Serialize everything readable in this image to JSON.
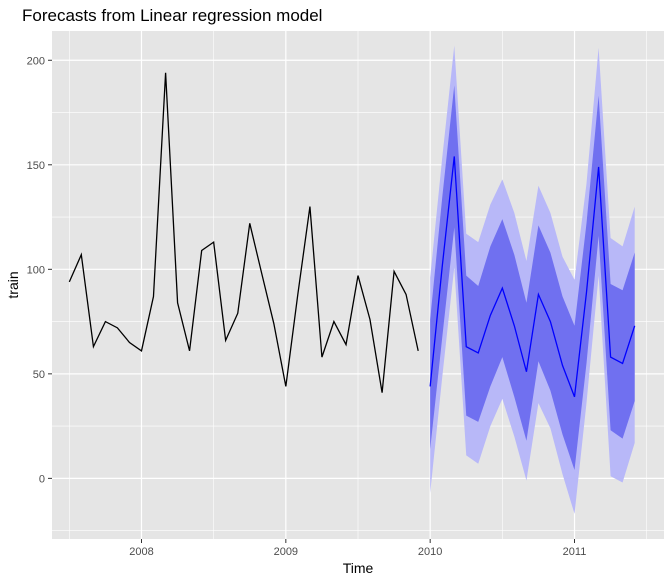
{
  "chart_data": {
    "type": "line",
    "title": "Forecasts from Linear regression model",
    "xlabel": "Time",
    "ylabel": "train",
    "xlim": [
      2007.38,
      2011.62
    ],
    "ylim": [
      -29,
      214
    ],
    "x_ticks": [
      2008,
      2009,
      2010,
      2011
    ],
    "x_tick_labels": [
      "2008",
      "2009",
      "2010",
      "2011"
    ],
    "y_ticks": [
      0,
      50,
      100,
      150,
      200
    ],
    "y_tick_labels": [
      "0",
      "50",
      "100",
      "150",
      "200"
    ],
    "grid": true,
    "colors": {
      "panel": "#e5e5e5",
      "grid": "#ffffff",
      "history": "#000000",
      "forecast": "#0000ff",
      "band80": "#7070f0",
      "band95": "#b8b8f8"
    },
    "history": {
      "x": [
        2007.5,
        2007.583,
        2007.667,
        2007.75,
        2007.833,
        2007.917,
        2008.0,
        2008.083,
        2008.167,
        2008.25,
        2008.333,
        2008.417,
        2008.5,
        2008.583,
        2008.667,
        2008.75,
        2008.833,
        2008.917,
        2009.0,
        2009.083,
        2009.167,
        2009.25,
        2009.333,
        2009.417,
        2009.5,
        2009.583,
        2009.667,
        2009.75,
        2009.833,
        2009.917
      ],
      "y": [
        94,
        107,
        63,
        75,
        72,
        65,
        61,
        87,
        194,
        84,
        61,
        109,
        113,
        66,
        79,
        122,
        98,
        74,
        44,
        88,
        130,
        58,
        75,
        64,
        97,
        76,
        41,
        99,
        88,
        61
      ]
    },
    "forecast": {
      "x": [
        2010.0,
        2010.083,
        2010.167,
        2010.25,
        2010.333,
        2010.417,
        2010.5,
        2010.583,
        2010.667,
        2010.75,
        2010.833,
        2010.917,
        2011.0,
        2011.083,
        2011.167,
        2011.25,
        2011.333,
        2011.417
      ],
      "mean": [
        44,
        101,
        154,
        63,
        60,
        78,
        91,
        73,
        51,
        88,
        75,
        54,
        39,
        89,
        149,
        58,
        55,
        73
      ],
      "lo80": [
        14,
        67,
        120,
        30,
        27,
        44,
        58,
        39,
        18,
        56,
        42,
        21,
        4,
        55,
        116,
        23,
        19,
        37
      ],
      "hi80": [
        76,
        134,
        188,
        97,
        92,
        111,
        124,
        107,
        84,
        121,
        108,
        87,
        73,
        122,
        183,
        93,
        90,
        108
      ],
      "lo95": [
        -7,
        48,
        101,
        11,
        7,
        25,
        38,
        20,
        -1,
        36,
        24,
        2,
        -17,
        36,
        97,
        1,
        -2,
        17
      ],
      "hi95": [
        96,
        153,
        207,
        117,
        113,
        131,
        143,
        127,
        104,
        140,
        127,
        106,
        95,
        141,
        206,
        115,
        111,
        130
      ]
    }
  }
}
